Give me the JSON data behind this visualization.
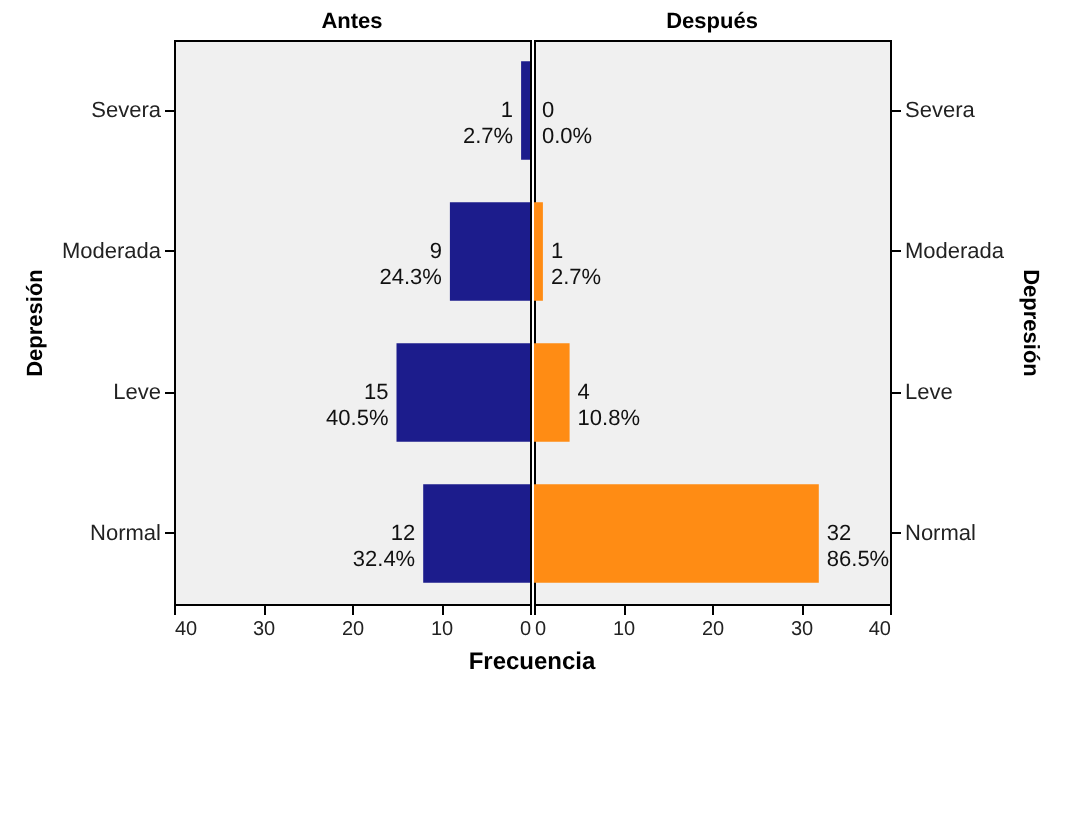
{
  "chart_data": [
    {
      "type": "bar",
      "orientation": "horizontal",
      "title": "Antes",
      "ylabel": "Depresión",
      "xlabel": "Frecuencia",
      "categories": [
        "Severa",
        "Moderada",
        "Leve",
        "Normal"
      ],
      "values": [
        1,
        9,
        15,
        12
      ],
      "color": "#1c1c8c",
      "value_labels": [
        "1\n2.7%",
        "9\n24.3%",
        "15\n40.5%",
        "12\n32.4%"
      ],
      "xlim": [
        40,
        0
      ],
      "xticks": [
        40,
        30,
        20,
        10,
        0
      ],
      "grid": false
    },
    {
      "type": "bar",
      "orientation": "horizontal",
      "title": "Después",
      "ylabel": "Depresión",
      "categories": [
        "Severa",
        "Moderada",
        "Leve",
        "Normal"
      ],
      "values": [
        0,
        1,
        4,
        32
      ],
      "color": "#ff8c14",
      "value_labels": [
        "0\n0.0%",
        "1\n2.7%",
        "4\n10.8%",
        "32\n86.5%"
      ],
      "xlim": [
        0,
        40
      ],
      "xticks": [
        0,
        10,
        20,
        30,
        40
      ],
      "grid": false
    }
  ]
}
